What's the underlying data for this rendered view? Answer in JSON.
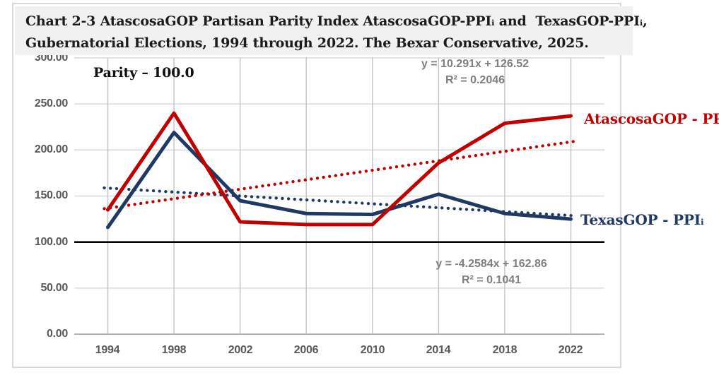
{
  "title": {
    "line1": "Chart 2-3 AtascosaGOP Partisan Parity Index AtascosaGOP-PPIᵢ and  TexasGOP-PPIᵢ,",
    "line2": "Gubernatorial Elections, 1994 through 2022. The Bexar Conservative, 2025."
  },
  "annotations": {
    "parity_label": "Parity – 100.0",
    "red_trendline_equation": "y = 10.291x + 126.52",
    "red_trendline_r2": "R² = 0.2046",
    "blue_trendline_equation": "y = -4.2584x + 162.86",
    "blue_trendline_r2": "R² = 0.1041"
  },
  "colors": {
    "atascosa_red": "#C00000",
    "texas_navy": "#1F3864",
    "equation_gray": "#7f7f7f",
    "axis_label_gray": "#595959",
    "gridline_gray": "#d9d9d9",
    "title_box_bg": "#f1f1f1",
    "parity_line": "#000000"
  },
  "chart_data": {
    "type": "line",
    "categories": [
      "1994",
      "1998",
      "2002",
      "2006",
      "2010",
      "2014",
      "2018",
      "2022"
    ],
    "series": [
      {
        "id": "atascosa",
        "name": "AtascosaGOP - PPIᵢ",
        "color": "#C00000",
        "values": [
          135,
          240,
          122,
          119,
          119,
          186,
          229,
          237
        ],
        "trendline": {
          "style": "dotted",
          "slope": 10.291,
          "intercept": 126.52,
          "equation": "y = 10.291x + 126.52",
          "r2": 0.2046
        }
      },
      {
        "id": "texas",
        "name": "TexasGOP - PPIᵢ",
        "color": "#1F3864",
        "values": [
          116,
          219,
          145,
          131,
          130,
          152,
          131,
          125
        ],
        "trendline": {
          "style": "dotted",
          "slope": -4.2584,
          "intercept": 162.86,
          "equation": "y = -4.2584x + 162.86",
          "r2": 0.1041
        }
      }
    ],
    "y_ticks": [
      0,
      50,
      100,
      150,
      200,
      250,
      300
    ],
    "y_tick_labels": [
      "0.00",
      "50.00",
      "100.00",
      "150.00",
      "200.00",
      "250.00",
      "300.00"
    ],
    "ylim": [
      0,
      300
    ],
    "parity_line": 100,
    "grid": true,
    "legend_position": "right-of-lines",
    "xlabel": "",
    "ylabel": ""
  }
}
